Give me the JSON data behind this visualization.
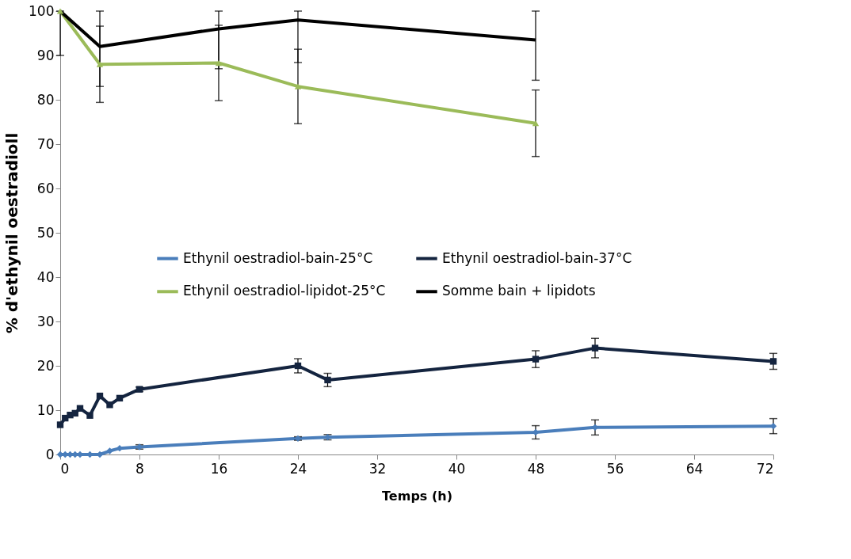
{
  "chart_data": {
    "type": "line",
    "xlabel": "Temps (h)",
    "ylabel": "% d'ethynil oestradioll",
    "xlim": [
      0,
      72
    ],
    "xticks": [
      0,
      8,
      16,
      24,
      32,
      40,
      48,
      56,
      64,
      72
    ],
    "ylim": [
      0,
      100
    ],
    "yticks": [
      0,
      10,
      20,
      30,
      40,
      50,
      60,
      70,
      80,
      90,
      100
    ],
    "grid": false,
    "legend": "center",
    "line_style": "solid",
    "series": [
      {
        "name": "Ethynil oestradiol-bain-25°C",
        "color": "#4a7ebb",
        "marker": "diamond",
        "x": [
          0,
          0.5,
          1,
          1.5,
          2,
          3,
          4,
          5,
          6,
          8,
          24,
          27,
          48,
          54,
          72
        ],
        "values": [
          0,
          0,
          0,
          0,
          0,
          0,
          0,
          0.8,
          1.4,
          1.7,
          3.6,
          3.9,
          5,
          6.1,
          6.4
        ],
        "errors": [
          null,
          null,
          null,
          null,
          null,
          null,
          null,
          null,
          null,
          0.5,
          0.4,
          0.6,
          1.5,
          1.7,
          1.7
        ]
      },
      {
        "name": "Ethynil oestradiol-bain-37°C",
        "color": "#14243f",
        "marker": "square",
        "x": [
          0,
          0.5,
          1,
          1.5,
          2,
          3,
          4,
          5,
          6,
          8,
          24,
          27,
          48,
          54,
          72
        ],
        "values": [
          6.7,
          8.2,
          8.9,
          9.3,
          10.4,
          8.8,
          13.2,
          11.2,
          12.7,
          14.7,
          20,
          16.8,
          21.5,
          24,
          21
        ],
        "errors": [
          null,
          null,
          null,
          null,
          null,
          null,
          null,
          null,
          null,
          0.5,
          1.6,
          1.5,
          1.9,
          2.2,
          1.8
        ]
      },
      {
        "name": "Ethynil oestradiol-lipidot-25°C",
        "color": "#9bbb59",
        "marker": "triangle",
        "x": [
          0,
          4,
          16,
          24,
          48
        ],
        "values": [
          100,
          88,
          88.3,
          83,
          74.7
        ],
        "errors": [
          null,
          8.6,
          8.5,
          8.4,
          7.5
        ]
      },
      {
        "name": "Somme bain + lipidots",
        "color": "#000000",
        "marker": "none",
        "x": [
          0,
          4,
          16,
          24,
          48
        ],
        "values": [
          100,
          92,
          96,
          98,
          93.5
        ],
        "errors": [
          [
            90,
            100
          ],
          [
            83,
            100
          ],
          [
            87,
            100
          ],
          [
            88.4,
            100
          ],
          [
            84.4,
            100
          ]
        ]
      }
    ]
  }
}
